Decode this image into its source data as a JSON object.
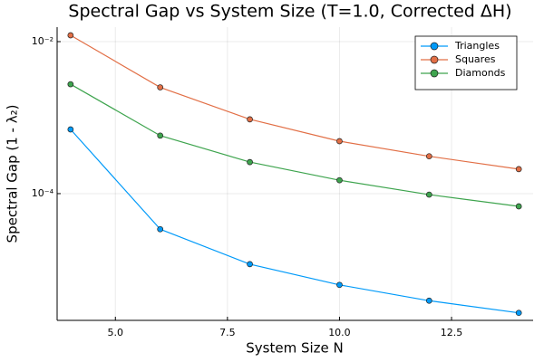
{
  "chart_data": {
    "type": "line",
    "title": "Spectral Gap vs System Size (T=1.0, Corrected ΔH)",
    "x_label": "System Size N",
    "y_label": "Spectral Gap (1 - λ₂)",
    "x": [
      4,
      6,
      8,
      10,
      12,
      14
    ],
    "series": [
      {
        "name": "Triangles",
        "color": "#009af9",
        "values": [
          0.0007,
          3.4e-05,
          1.18e-05,
          6.3e-06,
          3.9e-06,
          2.7e-06
        ]
      },
      {
        "name": "Squares",
        "color": "#e26f46",
        "values": [
          0.0121,
          0.0025,
          0.00095,
          0.00049,
          0.00031,
          0.00021
        ]
      },
      {
        "name": "Diamonds",
        "color": "#3ea44e",
        "values": [
          0.00275,
          0.00058,
          0.00026,
          0.00015,
          9.7e-05,
          6.8e-05
        ]
      }
    ],
    "xlim": [
      3.7,
      14.32
    ],
    "xticks": [
      {
        "value": 5,
        "label": "5.0"
      },
      7.5,
      {
        "value": 10,
        "label": "10.0"
      },
      12.5
    ],
    "ylim": [
      2.15e-06,
      0.0155
    ],
    "yticks": [
      {
        "value": 0.01,
        "label": "10⁻²"
      },
      {
        "value": 0.0001,
        "label": "10⁻⁴"
      }
    ],
    "log_y": true,
    "grid": true,
    "legend": "top-right"
  }
}
